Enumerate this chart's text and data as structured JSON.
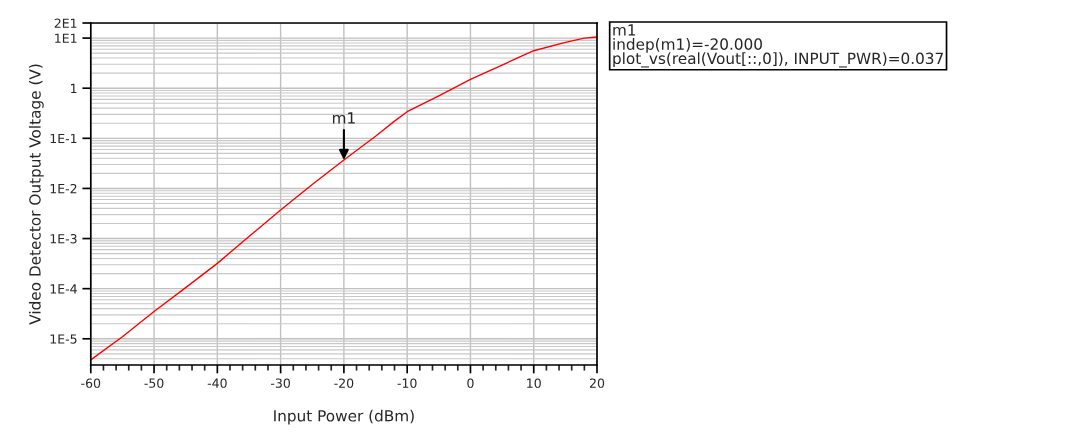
{
  "chart_data": {
    "type": "line",
    "xlabel": "Input Power (dBm)",
    "ylabel": "Video Detector Output Voltage (V)",
    "log": "y",
    "grid": true,
    "marker": "none",
    "line_style": "solid",
    "xlim": [
      -60,
      20
    ],
    "xticks": [
      -60,
      -50,
      -40,
      -30,
      -20,
      -10,
      0,
      10,
      20
    ],
    "ylim": [
      3e-06,
      20
    ],
    "yticks": [
      {
        "value": 20,
        "label": "2E1"
      },
      {
        "value": 10,
        "label": "1E1"
      },
      {
        "value": 1,
        "label": "1"
      },
      {
        "value": 0.1,
        "label": "1E-1"
      },
      {
        "value": 0.01,
        "label": "1E-2"
      },
      {
        "value": 0.001,
        "label": "1E-3"
      },
      {
        "value": 0.0001,
        "label": "1E-4"
      },
      {
        "value": 1e-05,
        "label": "1E-5"
      }
    ],
    "series": [
      {
        "color": "#ff0000",
        "x": [
          -60,
          -55,
          -50,
          -45,
          -40,
          -35,
          -30,
          -25,
          -20,
          -15,
          -12,
          -10,
          -5,
          0,
          5,
          10,
          15,
          18,
          20
        ],
        "values": [
          3.8e-06,
          1.1e-05,
          3.5e-05,
          0.000105,
          0.00032,
          0.0011,
          0.0037,
          0.012,
          0.037,
          0.11,
          0.22,
          0.34,
          0.7,
          1.5,
          2.9,
          5.6,
          8.2,
          10,
          10.5
        ]
      }
    ],
    "annotations": [
      {
        "text": "m1",
        "x": -20,
        "y": 0.037
      },
      "m1",
      "indep(m1)=-20.000",
      "plot_vs(real(Vout[::,0]), INPUT_PWR)=0.037"
    ]
  }
}
